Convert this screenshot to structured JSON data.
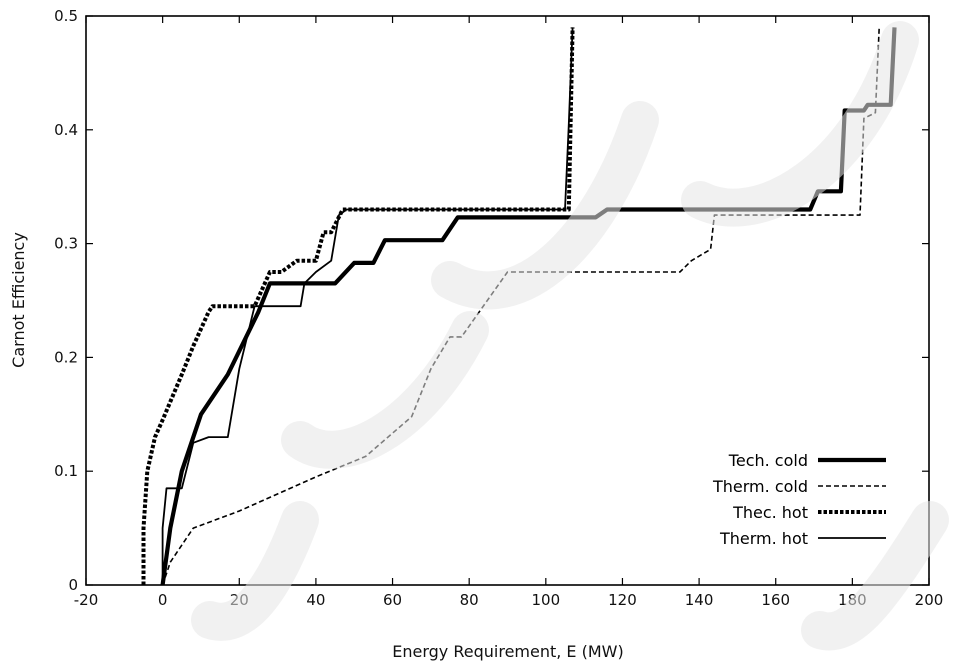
{
  "chart_data": {
    "type": "line",
    "xlabel": "Energy Requirement, E (MW)",
    "ylabel": "Carnot Efficiency",
    "xlim": [
      -20,
      200
    ],
    "ylim": [
      0,
      0.5
    ],
    "xticks": [
      "-20",
      "0",
      "20",
      "40",
      "60",
      "80",
      "100",
      "120",
      "140",
      "160",
      "180",
      "200"
    ],
    "yticks": [
      "0",
      "0.1",
      "0.2",
      "0.3",
      "0.4",
      "0.5"
    ],
    "grid": false,
    "legend_position": "bottom-right",
    "series": [
      {
        "name": "Tech. cold",
        "style": "solid-thick",
        "color": "#000000",
        "points": [
          [
            0,
            0
          ],
          [
            2,
            0.05
          ],
          [
            5,
            0.1
          ],
          [
            10,
            0.15
          ],
          [
            17,
            0.185
          ],
          [
            25,
            0.24
          ],
          [
            28,
            0.265
          ],
          [
            45,
            0.265
          ],
          [
            50,
            0.283
          ],
          [
            55,
            0.283
          ],
          [
            58,
            0.303
          ],
          [
            73,
            0.303
          ],
          [
            77,
            0.323
          ],
          [
            113,
            0.323
          ],
          [
            116,
            0.33
          ],
          [
            169,
            0.33
          ],
          [
            171,
            0.346
          ],
          [
            177,
            0.346
          ],
          [
            178,
            0.417
          ],
          [
            183,
            0.417
          ],
          [
            184,
            0.422
          ],
          [
            190,
            0.422
          ],
          [
            191,
            0.49
          ]
        ]
      },
      {
        "name": "Therm. cold",
        "style": "dashed",
        "color": "#000000",
        "points": [
          [
            0,
            0
          ],
          [
            2,
            0.02
          ],
          [
            8,
            0.05
          ],
          [
            20,
            0.065
          ],
          [
            40,
            0.095
          ],
          [
            53,
            0.113
          ],
          [
            65,
            0.148
          ],
          [
            70,
            0.19
          ],
          [
            75,
            0.218
          ],
          [
            78,
            0.218
          ],
          [
            90,
            0.275
          ],
          [
            135,
            0.275
          ],
          [
            138,
            0.285
          ],
          [
            143,
            0.295
          ],
          [
            144,
            0.325
          ],
          [
            182,
            0.325
          ],
          [
            183,
            0.41
          ],
          [
            186,
            0.415
          ],
          [
            187,
            0.49
          ]
        ]
      },
      {
        "name": "Thec. hot",
        "style": "dotted-thick",
        "color": "#000000",
        "points": [
          [
            -5,
            0
          ],
          [
            -5,
            0.05
          ],
          [
            -4,
            0.1
          ],
          [
            -2,
            0.13
          ],
          [
            0,
            0.145
          ],
          [
            5,
            0.185
          ],
          [
            8,
            0.21
          ],
          [
            12,
            0.24
          ],
          [
            13,
            0.245
          ],
          [
            24,
            0.245
          ],
          [
            28,
            0.275
          ],
          [
            31,
            0.275
          ],
          [
            35,
            0.285
          ],
          [
            40,
            0.285
          ],
          [
            42,
            0.31
          ],
          [
            44,
            0.31
          ],
          [
            47,
            0.33
          ],
          [
            106,
            0.33
          ],
          [
            107,
            0.49
          ]
        ]
      },
      {
        "name": "Therm. hot",
        "style": "solid-thin",
        "color": "#000000",
        "points": [
          [
            0,
            0
          ],
          [
            0,
            0.05
          ],
          [
            1,
            0.085
          ],
          [
            5,
            0.085
          ],
          [
            8,
            0.125
          ],
          [
            12,
            0.13
          ],
          [
            17,
            0.13
          ],
          [
            20,
            0.19
          ],
          [
            24,
            0.245
          ],
          [
            36,
            0.245
          ],
          [
            37,
            0.265
          ],
          [
            40,
            0.275
          ],
          [
            44,
            0.285
          ],
          [
            46,
            0.325
          ],
          [
            48,
            0.33
          ],
          [
            105,
            0.33
          ],
          [
            106,
            0.405
          ],
          [
            107,
            0.49
          ]
        ]
      }
    ]
  }
}
